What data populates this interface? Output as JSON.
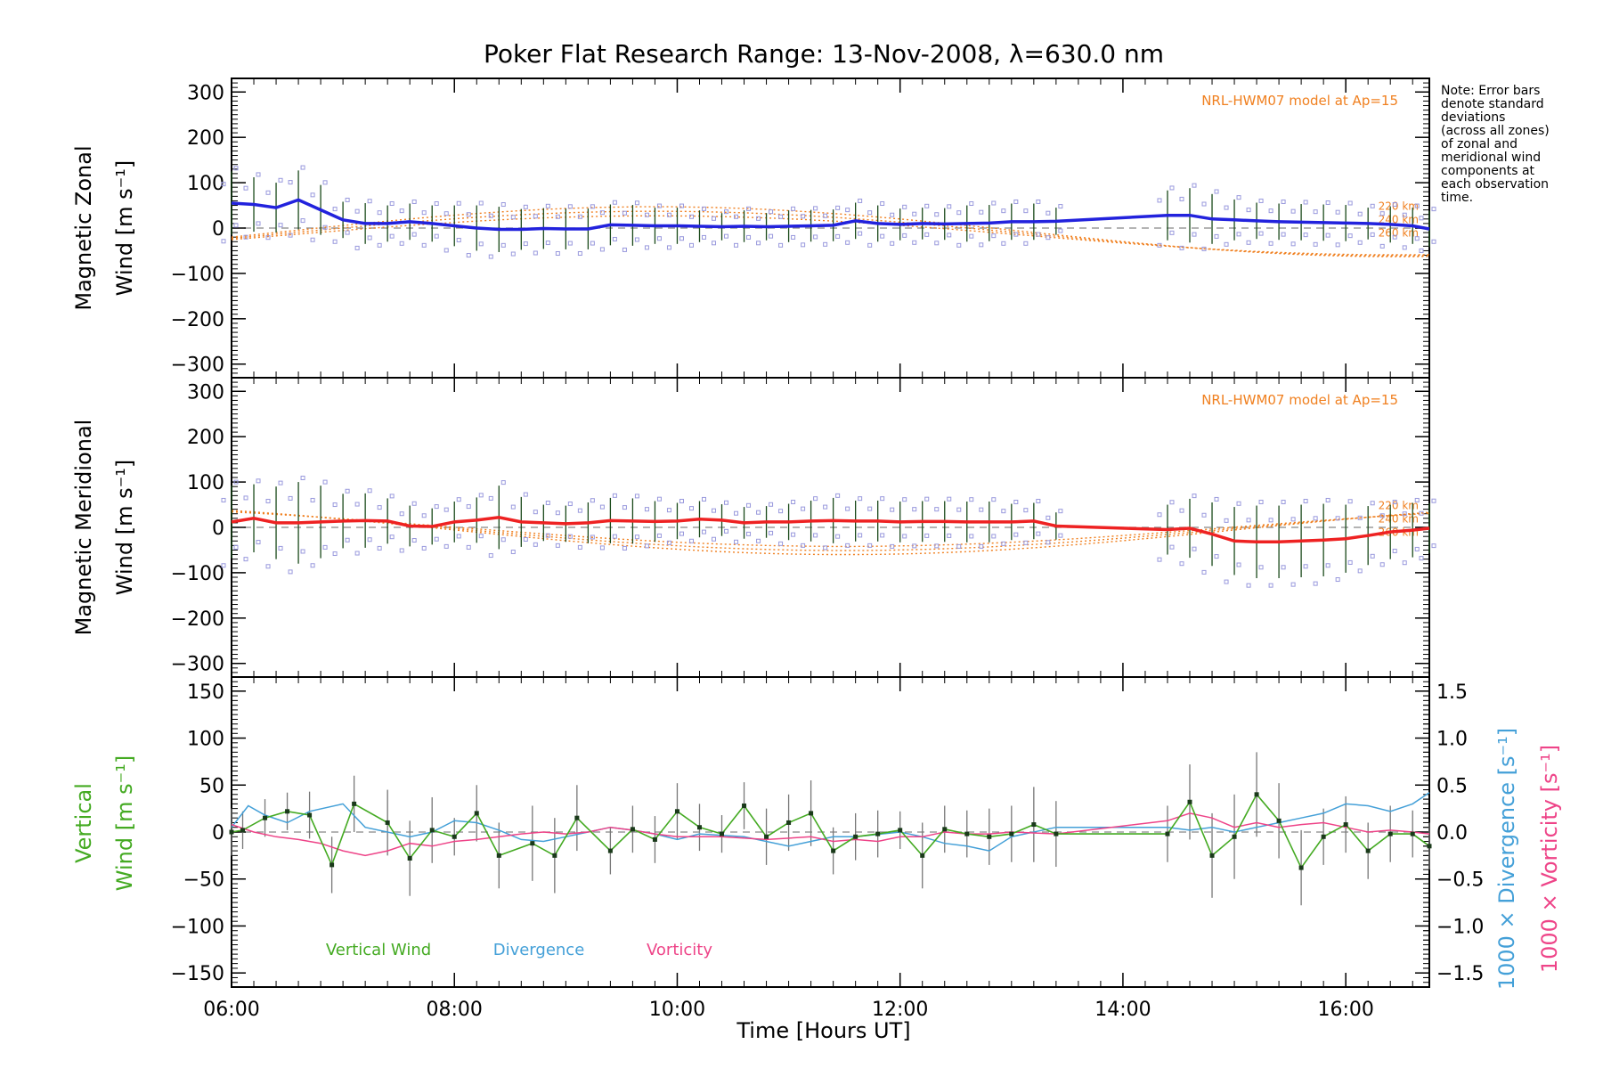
{
  "title": "Poker Flat Research Range: 13-Nov-2008, λ=630.0 nm",
  "xlabel": "Time [Hours UT]",
  "note": {
    "lines": [
      "Note: Error bars",
      "denote standard",
      "deviations",
      "(across all zones)",
      "of zonal and",
      "meridional wind",
      "components at",
      "each observation",
      "time."
    ]
  },
  "colors": {
    "zonal": "#2222dd",
    "meridional": "#ee2222",
    "vertical": "#44aa22",
    "divergence": "#44a0d8",
    "vorticity": "#ee4488",
    "model": "#f08020",
    "zone_points": "#9999dd"
  },
  "chart_data": [
    {
      "type": "line",
      "panel": "zonal",
      "ylabel": [
        "Magnetic Zonal",
        "Wind [m s⁻¹]"
      ],
      "xlim": [
        6.0,
        16.75
      ],
      "ylim": [
        -330,
        330
      ],
      "yticks": [
        300,
        200,
        100,
        0,
        -100,
        -200,
        -300
      ],
      "xticks": [
        6,
        8,
        10,
        12,
        14,
        16
      ],
      "xticklabels": [
        "06:00",
        "08:00",
        "10:00",
        "12:00",
        "14:00",
        "16:00"
      ],
      "model_label": "NRL-HWM07 model at Ap=15",
      "model_altitudes": [
        "220 km",
        "240 km",
        "260 km"
      ],
      "series": [
        {
          "name": "",
          "x": [
            6.0,
            6.2,
            6.4,
            6.6,
            6.8,
            7.0,
            7.2,
            7.4,
            7.6,
            7.8,
            8.0,
            8.2,
            8.4,
            8.6,
            8.8,
            9.0,
            9.2,
            9.4,
            9.6,
            9.8,
            10.0,
            10.2,
            10.4,
            10.6,
            10.8,
            11.0,
            11.2,
            11.4,
            11.6,
            11.8,
            12.0,
            12.2,
            12.4,
            12.6,
            12.8,
            13.0,
            13.2,
            13.4,
            14.4,
            14.6,
            14.8,
            15.0,
            15.2,
            15.4,
            15.6,
            15.8,
            16.0,
            16.2,
            16.4,
            16.6,
            16.75
          ],
          "y": [
            55,
            52,
            45,
            62,
            40,
            18,
            10,
            10,
            14,
            10,
            5,
            0,
            -3,
            -3,
            -1,
            -2,
            -2,
            7,
            6,
            5,
            5,
            4,
            3,
            4,
            3,
            4,
            5,
            6,
            16,
            10,
            8,
            10,
            9,
            10,
            11,
            14,
            14,
            15,
            28,
            28,
            20,
            18,
            16,
            14,
            13,
            12,
            11,
            10,
            8,
            5,
            -2
          ],
          "err": [
            70,
            60,
            55,
            65,
            55,
            40,
            45,
            40,
            40,
            40,
            45,
            50,
            50,
            45,
            45,
            45,
            45,
            45,
            45,
            40,
            40,
            35,
            30,
            35,
            30,
            35,
            35,
            35,
            40,
            40,
            35,
            35,
            35,
            40,
            40,
            40,
            40,
            30,
            55,
            60,
            55,
            45,
            40,
            40,
            40,
            40,
            40,
            35,
            40,
            40,
            40
          ]
        }
      ]
    },
    {
      "type": "line",
      "panel": "meridional",
      "ylabel": [
        "Magnetic Meridional",
        "Wind [m s⁻¹]"
      ],
      "xlim": [
        6.0,
        16.75
      ],
      "ylim": [
        -330,
        330
      ],
      "yticks": [
        300,
        200,
        100,
        0,
        -100,
        -200,
        -300
      ],
      "xticks": [
        6,
        8,
        10,
        12,
        14,
        16
      ],
      "xticklabels": [
        "06:00",
        "08:00",
        "10:00",
        "12:00",
        "14:00",
        "16:00"
      ],
      "model_label": "NRL-HWM07 model at Ap=15",
      "model_altitudes": [
        "220 km",
        "240 km",
        "260 km"
      ],
      "series": [
        {
          "name": "",
          "x": [
            6.0,
            6.2,
            6.4,
            6.6,
            6.8,
            7.0,
            7.2,
            7.4,
            7.6,
            7.8,
            8.0,
            8.2,
            8.4,
            8.6,
            8.8,
            9.0,
            9.2,
            9.4,
            9.6,
            9.8,
            10.0,
            10.2,
            10.4,
            10.6,
            10.8,
            11.0,
            11.2,
            11.4,
            11.6,
            11.8,
            12.0,
            12.2,
            12.4,
            12.6,
            12.8,
            13.0,
            13.2,
            13.4,
            14.4,
            14.6,
            14.8,
            15.0,
            15.2,
            15.4,
            15.6,
            15.8,
            16.0,
            16.2,
            16.4,
            16.6,
            16.75
          ],
          "y": [
            12,
            20,
            10,
            10,
            12,
            14,
            15,
            14,
            3,
            2,
            12,
            16,
            22,
            12,
            10,
            8,
            10,
            15,
            14,
            13,
            14,
            18,
            16,
            10,
            12,
            12,
            14,
            15,
            14,
            14,
            12,
            13,
            13,
            12,
            12,
            12,
            14,
            3,
            -5,
            -2,
            -15,
            -30,
            -32,
            -32,
            -30,
            -28,
            -25,
            -18,
            -10,
            -6,
            -2
          ],
          "err": [
            80,
            75,
            80,
            90,
            80,
            60,
            60,
            50,
            45,
            40,
            45,
            50,
            70,
            55,
            40,
            40,
            45,
            50,
            50,
            45,
            40,
            40,
            35,
            35,
            35,
            40,
            45,
            50,
            45,
            45,
            45,
            45,
            45,
            45,
            45,
            40,
            40,
            30,
            55,
            65,
            70,
            75,
            80,
            80,
            80,
            80,
            75,
            65,
            60,
            60,
            55
          ]
        }
      ]
    },
    {
      "type": "line",
      "panel": "vertical",
      "ylabel": [
        "Vertical",
        "Wind [m s⁻¹]"
      ],
      "y2label_divergence": "1000 × Divergence [s⁻¹]",
      "y2label_vorticity": "1000 × Vorticity [s⁻¹]",
      "xlim": [
        6.0,
        16.75
      ],
      "ylim": [
        -165,
        165
      ],
      "y2lim": [
        -1.65,
        1.65
      ],
      "yticks": [
        150,
        100,
        50,
        0,
        -50,
        -100,
        -150
      ],
      "y2ticks": [
        1.5,
        1.0,
        0.5,
        0.0,
        -0.5,
        -1.0,
        -1.5
      ],
      "y2ticklabels": [
        "1.5",
        "1.0",
        "0.5",
        "0.0",
        "−0.5",
        "−1.0",
        "−1.5"
      ],
      "xticks": [
        6,
        8,
        10,
        12,
        14,
        16
      ],
      "xticklabels": [
        "06:00",
        "08:00",
        "10:00",
        "12:00",
        "14:00",
        "16:00"
      ],
      "legend": [
        "Vertical Wind",
        "Divergence",
        "Vorticity"
      ],
      "series": [
        {
          "name": "Vertical Wind",
          "x": [
            6.0,
            6.1,
            6.3,
            6.5,
            6.7,
            6.9,
            7.1,
            7.4,
            7.6,
            7.8,
            8.0,
            8.2,
            8.4,
            8.7,
            8.9,
            9.1,
            9.4,
            9.6,
            9.8,
            10.0,
            10.2,
            10.4,
            10.6,
            10.8,
            11.0,
            11.2,
            11.4,
            11.6,
            11.8,
            12.0,
            12.2,
            12.4,
            12.6,
            12.8,
            13.0,
            13.2,
            13.4,
            14.4,
            14.6,
            14.8,
            15.0,
            15.2,
            15.4,
            15.6,
            15.8,
            16.0,
            16.2,
            16.4,
            16.6,
            16.75
          ],
          "y": [
            0,
            2,
            15,
            22,
            18,
            -35,
            30,
            10,
            -28,
            2,
            -5,
            20,
            -25,
            -12,
            -25,
            15,
            -20,
            3,
            -8,
            22,
            5,
            -2,
            28,
            -5,
            10,
            20,
            -20,
            -5,
            -2,
            2,
            -25,
            3,
            -2,
            -5,
            -2,
            8,
            -2,
            -2,
            32,
            -25,
            -5,
            40,
            12,
            -38,
            -5,
            8,
            -20,
            -2,
            -2,
            -15
          ],
          "err": [
            25,
            20,
            20,
            20,
            25,
            30,
            30,
            35,
            40,
            35,
            20,
            30,
            35,
            40,
            40,
            35,
            25,
            25,
            25,
            30,
            25,
            20,
            25,
            30,
            30,
            35,
            25,
            25,
            25,
            20,
            35,
            25,
            25,
            30,
            30,
            40,
            35,
            30,
            40,
            45,
            45,
            45,
            40,
            40,
            30,
            30,
            30,
            30,
            25,
            25
          ]
        },
        {
          "name": "Divergence",
          "x": [
            6.0,
            6.15,
            6.3,
            6.5,
            6.7,
            7.0,
            7.2,
            7.6,
            7.8,
            8.0,
            8.2,
            8.4,
            8.6,
            8.8,
            9.0,
            9.2,
            9.4,
            9.6,
            9.8,
            10.0,
            10.2,
            10.6,
            11.0,
            11.2,
            11.4,
            11.6,
            12.0,
            12.2,
            12.4,
            12.6,
            12.8,
            13.0,
            13.4,
            14.4,
            14.6,
            14.8,
            15.0,
            15.2,
            15.4,
            15.6,
            15.8,
            16.0,
            16.2,
            16.4,
            16.6,
            16.75
          ],
          "y": [
            0.05,
            0.28,
            0.18,
            0.1,
            0.22,
            0.3,
            0.05,
            -0.05,
            0.0,
            0.12,
            0.1,
            0.02,
            -0.08,
            -0.1,
            -0.05,
            0.0,
            0.05,
            0.02,
            -0.02,
            -0.08,
            -0.02,
            -0.05,
            -0.15,
            -0.1,
            -0.05,
            -0.05,
            0.0,
            -0.05,
            -0.12,
            -0.15,
            -0.2,
            -0.05,
            0.05,
            0.05,
            0.02,
            0.05,
            0.0,
            0.05,
            0.1,
            0.15,
            0.2,
            0.3,
            0.28,
            0.22,
            0.3,
            0.42
          ]
        },
        {
          "name": "Vorticity",
          "x": [
            6.0,
            6.2,
            6.4,
            6.6,
            6.8,
            7.0,
            7.2,
            7.4,
            7.6,
            7.8,
            8.0,
            8.2,
            8.4,
            8.6,
            8.8,
            9.0,
            9.2,
            9.4,
            9.6,
            9.8,
            10.0,
            10.4,
            10.8,
            11.2,
            11.4,
            11.6,
            11.8,
            12.0,
            12.2,
            12.4,
            12.6,
            12.8,
            13.0,
            13.4,
            14.4,
            14.6,
            14.8,
            15.0,
            15.2,
            15.4,
            15.6,
            15.8,
            16.0,
            16.2,
            16.4,
            16.6,
            16.75
          ],
          "y": [
            0.08,
            0.0,
            -0.05,
            -0.08,
            -0.12,
            -0.2,
            -0.25,
            -0.2,
            -0.12,
            -0.15,
            -0.1,
            -0.08,
            -0.05,
            -0.02,
            0.0,
            -0.02,
            0.0,
            0.05,
            0.02,
            -0.02,
            -0.05,
            -0.05,
            -0.08,
            -0.05,
            -0.1,
            -0.08,
            -0.1,
            -0.05,
            -0.05,
            0.0,
            -0.02,
            -0.02,
            0.0,
            -0.02,
            0.12,
            0.2,
            0.15,
            0.05,
            0.1,
            0.05,
            0.08,
            0.1,
            0.05,
            0.0,
            0.02,
            0.0,
            -0.02
          ]
        }
      ]
    }
  ]
}
